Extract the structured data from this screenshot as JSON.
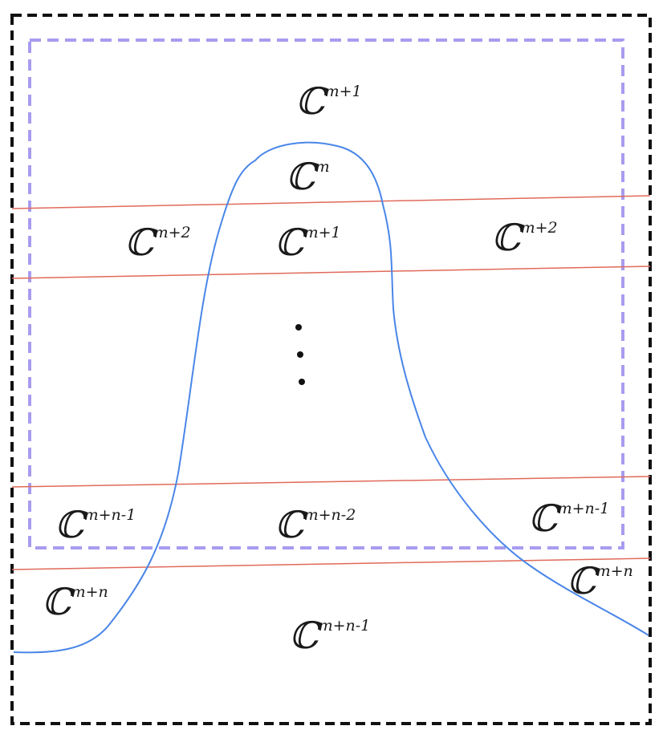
{
  "colors": {
    "outer_border": "#111111",
    "inner_border": "#a79cf0",
    "level_lines": "#e06a5a",
    "curve": "#4a86e8",
    "text": "#1a1a1a",
    "background": "#ffffff"
  },
  "labels": {
    "top": {
      "base": "ℂ",
      "exp": "m+1"
    },
    "inside_top": {
      "base": "ℂ",
      "exp": "m"
    },
    "band1_left": {
      "base": "ℂ",
      "exp": "m+2"
    },
    "band1_mid": {
      "base": "ℂ",
      "exp": "m+1"
    },
    "band1_right": {
      "base": "ℂ",
      "exp": "m+2"
    },
    "band_last_left": {
      "base": "ℂ",
      "exp": "m+n-1"
    },
    "band_last_mid": {
      "base": "ℂ",
      "exp": "m+n-2"
    },
    "band_last_right": {
      "base": "ℂ",
      "exp": "m+n-1"
    },
    "bottom_left": {
      "base": "ℂ",
      "exp": "m+n"
    },
    "bottom_right": {
      "base": "ℂ",
      "exp": "m+n"
    },
    "bottom_mid": {
      "base": "ℂ",
      "exp": "m+n-1"
    }
  }
}
